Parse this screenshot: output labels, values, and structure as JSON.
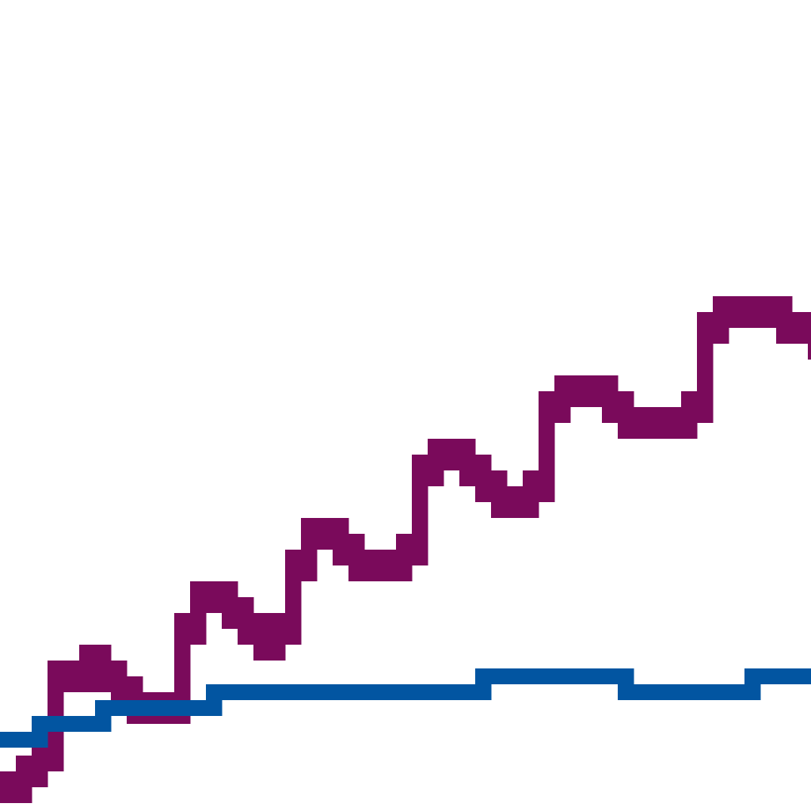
{
  "chart_data": {
    "type": "line",
    "title": "",
    "xlabel": "",
    "ylabel": "",
    "grid": false,
    "legend": "none",
    "x": [
      0,
      1,
      2,
      3,
      4,
      5,
      6,
      7,
      8,
      9,
      10,
      11,
      12,
      13,
      14,
      15,
      16,
      17,
      18,
      19,
      20,
      21,
      22,
      23,
      24,
      25,
      26,
      27,
      28,
      29,
      30,
      31,
      32,
      33,
      34,
      35,
      36,
      37,
      38,
      39,
      40,
      41,
      42,
      43,
      44,
      45,
      46,
      47,
      48,
      49,
      50,
      51
    ],
    "xlim": [
      0,
      51.2
    ],
    "ylim": [
      0,
      51.2
    ],
    "series": [
      {
        "color": "#7a0a5b",
        "values": [
          1,
          2,
          3,
          8,
          8,
          9,
          8,
          7,
          6,
          6,
          6,
          11,
          13,
          13,
          12,
          11,
          10,
          11,
          15,
          17,
          17,
          16,
          15,
          15,
          15,
          16,
          21,
          22,
          22,
          21,
          20,
          19,
          19,
          20,
          25,
          26,
          26,
          26,
          25,
          24,
          24,
          24,
          24,
          25,
          30,
          31,
          31,
          31,
          31,
          30,
          30,
          29
        ]
      },
      {
        "color": "#0255a1",
        "values": [
          4,
          4,
          5,
          5,
          5,
          5,
          6,
          6,
          6,
          6,
          6,
          6,
          6,
          7,
          7,
          7,
          7,
          7,
          7,
          7,
          7,
          7,
          7,
          7,
          7,
          7,
          7,
          7,
          7,
          7,
          8,
          8,
          8,
          8,
          8,
          8,
          8,
          8,
          8,
          7,
          7,
          7,
          7,
          7,
          7,
          7,
          7,
          8,
          8,
          8,
          8,
          8
        ]
      }
    ]
  }
}
